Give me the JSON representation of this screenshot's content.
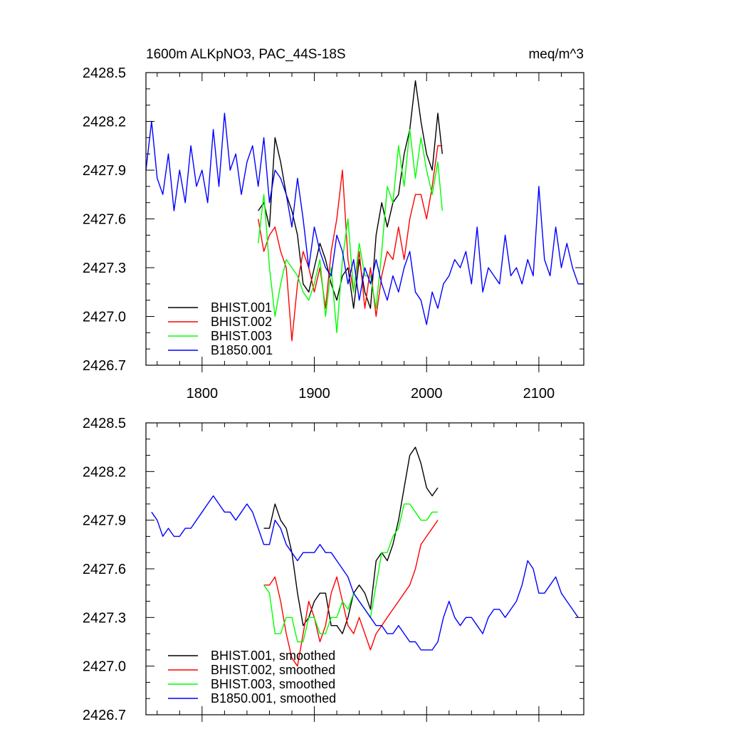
{
  "chart_data": [
    {
      "type": "line",
      "title": "1600m ALKpNO3, PAC_44S-18S",
      "units_label": "meq/m^3",
      "xlim": [
        1750,
        2140
      ],
      "ylim": [
        2426.7,
        2428.5
      ],
      "x_ticks": [
        1800,
        1900,
        2000,
        2100
      ],
      "x_tick_labels": [
        "1800",
        "1900",
        "2000",
        "2100"
      ],
      "y_ticks": [
        2426.7,
        2427.0,
        2427.3,
        2427.6,
        2427.9,
        2428.2,
        2428.5
      ],
      "y_tick_labels": [
        "2426.7",
        "2427.0",
        "2427.3",
        "2427.6",
        "2427.9",
        "2428.2",
        "2428.5"
      ],
      "legend_position": "bottom-left",
      "series": [
        {
          "name": "BHIST.001",
          "color": "#000000",
          "x": [
            1850,
            1855,
            1860,
            1865,
            1870,
            1875,
            1880,
            1885,
            1890,
            1895,
            1900,
            1905,
            1910,
            1915,
            1920,
            1925,
            1930,
            1935,
            1940,
            1945,
            1950,
            1955,
            1960,
            1965,
            1970,
            1975,
            1980,
            1985,
            1990,
            1995,
            2000,
            2005,
            2010,
            2014
          ],
          "y": [
            2427.65,
            2427.7,
            2427.55,
            2428.1,
            2427.95,
            2427.75,
            2427.65,
            2427.5,
            2427.2,
            2427.15,
            2427.3,
            2427.45,
            2427.35,
            2427.2,
            2427.1,
            2427.25,
            2427.3,
            2427.05,
            2427.35,
            2427.15,
            2427.05,
            2427.5,
            2427.7,
            2427.55,
            2427.7,
            2427.75,
            2428.0,
            2428.15,
            2428.45,
            2428.2,
            2428.0,
            2427.9,
            2428.25,
            2428.0
          ]
        },
        {
          "name": "BHIST.002",
          "color": "#ff0000",
          "x": [
            1850,
            1855,
            1860,
            1865,
            1870,
            1875,
            1880,
            1885,
            1890,
            1895,
            1900,
            1905,
            1910,
            1915,
            1920,
            1925,
            1930,
            1935,
            1940,
            1945,
            1950,
            1955,
            1960,
            1965,
            1970,
            1975,
            1980,
            1985,
            1990,
            1995,
            2000,
            2005,
            2010,
            2014
          ],
          "y": [
            2427.6,
            2427.4,
            2427.5,
            2427.55,
            2427.4,
            2427.3,
            2426.85,
            2427.2,
            2427.4,
            2427.3,
            2427.15,
            2427.3,
            2427.05,
            2427.4,
            2427.6,
            2427.9,
            2427.35,
            2427.15,
            2427.4,
            2427.05,
            2427.3,
            2427.0,
            2427.25,
            2427.4,
            2427.35,
            2427.55,
            2427.35,
            2427.6,
            2427.75,
            2427.75,
            2427.6,
            2427.8,
            2428.05,
            2428.05
          ]
        },
        {
          "name": "BHIST.003",
          "color": "#00ff00",
          "x": [
            1850,
            1855,
            1860,
            1865,
            1870,
            1875,
            1880,
            1885,
            1890,
            1895,
            1900,
            1905,
            1910,
            1915,
            1920,
            1925,
            1930,
            1935,
            1940,
            1945,
            1950,
            1955,
            1960,
            1965,
            1970,
            1975,
            1980,
            1985,
            1990,
            1995,
            2000,
            2005,
            2010,
            2014
          ],
          "y": [
            2427.45,
            2427.75,
            2427.3,
            2427.0,
            2427.2,
            2427.35,
            2427.3,
            2427.25,
            2427.15,
            2427.1,
            2427.2,
            2427.35,
            2427.0,
            2427.3,
            2426.9,
            2427.35,
            2427.6,
            2427.15,
            2427.45,
            2427.25,
            2427.25,
            2427.05,
            2427.4,
            2427.8,
            2427.7,
            2428.05,
            2427.8,
            2428.15,
            2427.85,
            2428.1,
            2427.9,
            2427.75,
            2427.95,
            2427.65
          ]
        },
        {
          "name": "B1850.001",
          "color": "#0000ff",
          "x": [
            1750,
            1755,
            1760,
            1765,
            1770,
            1775,
            1780,
            1785,
            1790,
            1795,
            1800,
            1805,
            1810,
            1815,
            1820,
            1825,
            1830,
            1835,
            1840,
            1845,
            1850,
            1855,
            1860,
            1865,
            1870,
            1875,
            1880,
            1885,
            1890,
            1895,
            1900,
            1905,
            1910,
            1915,
            1920,
            1925,
            1930,
            1935,
            1940,
            1945,
            1950,
            1955,
            1960,
            1965,
            1970,
            1975,
            1980,
            1985,
            1990,
            1995,
            2000,
            2005,
            2010,
            2015,
            2020,
            2025,
            2030,
            2035,
            2040,
            2045,
            2050,
            2055,
            2060,
            2065,
            2070,
            2075,
            2080,
            2085,
            2090,
            2095,
            2100,
            2105,
            2110,
            2115,
            2120,
            2125,
            2130,
            2135,
            2140
          ],
          "y": [
            2427.9,
            2428.2,
            2427.85,
            2427.75,
            2428.0,
            2427.65,
            2427.9,
            2427.7,
            2428.05,
            2427.8,
            2427.9,
            2427.7,
            2428.15,
            2427.8,
            2428.25,
            2427.9,
            2428.0,
            2427.75,
            2427.95,
            2428.05,
            2427.8,
            2428.1,
            2427.7,
            2427.9,
            2427.85,
            2427.75,
            2427.55,
            2427.85,
            2427.6,
            2427.3,
            2427.55,
            2427.4,
            2427.3,
            2427.25,
            2427.5,
            2427.4,
            2427.2,
            2427.35,
            2427.1,
            2427.3,
            2427.2,
            2427.35,
            2427.2,
            2427.1,
            2427.25,
            2427.15,
            2427.3,
            2427.4,
            2427.15,
            2427.1,
            2426.95,
            2427.15,
            2427.05,
            2427.2,
            2427.25,
            2427.35,
            2427.3,
            2427.4,
            2427.2,
            2427.55,
            2427.15,
            2427.3,
            2427.25,
            2427.2,
            2427.5,
            2427.25,
            2427.3,
            2427.2,
            2427.35,
            2427.25,
            2427.8,
            2427.35,
            2427.25,
            2427.55,
            2427.3,
            2427.45,
            2427.3,
            2427.2,
            2427.2
          ]
        }
      ]
    },
    {
      "type": "line",
      "xlim": [
        1750,
        2140
      ],
      "ylim": [
        2426.7,
        2428.5
      ],
      "x_ticks": [
        1800,
        1900,
        2000,
        2100
      ],
      "y_ticks": [
        2426.7,
        2427.0,
        2427.3,
        2427.6,
        2427.9,
        2428.2,
        2428.5
      ],
      "y_tick_labels": [
        "2426.7",
        "2427.0",
        "2427.3",
        "2427.6",
        "2427.9",
        "2428.2",
        "2428.5"
      ],
      "legend_position": "bottom-left",
      "series": [
        {
          "name": "BHIST.001, smoothed",
          "color": "#000000",
          "x": [
            1855,
            1860,
            1865,
            1870,
            1875,
            1880,
            1885,
            1890,
            1895,
            1900,
            1905,
            1910,
            1915,
            1920,
            1925,
            1930,
            1935,
            1940,
            1945,
            1950,
            1955,
            1960,
            1965,
            1970,
            1975,
            1980,
            1985,
            1990,
            1995,
            2000,
            2005,
            2010
          ],
          "y": [
            2427.85,
            2427.85,
            2428.0,
            2427.9,
            2427.85,
            2427.7,
            2427.45,
            2427.25,
            2427.3,
            2427.4,
            2427.45,
            2427.45,
            2427.25,
            2427.25,
            2427.2,
            2427.3,
            2427.45,
            2427.5,
            2427.45,
            2427.35,
            2427.65,
            2427.7,
            2427.65,
            2427.75,
            2427.9,
            2428.1,
            2428.3,
            2428.35,
            2428.25,
            2428.1,
            2428.05,
            2428.1
          ]
        },
        {
          "name": "BHIST.002, smoothed",
          "color": "#ff0000",
          "x": [
            1855,
            1860,
            1865,
            1870,
            1875,
            1880,
            1885,
            1890,
            1895,
            1900,
            1905,
            1910,
            1915,
            1920,
            1925,
            1930,
            1935,
            1940,
            1945,
            1950,
            1955,
            1960,
            1965,
            1970,
            1975,
            1980,
            1985,
            1990,
            1995,
            2000,
            2005,
            2010
          ],
          "y": [
            2427.5,
            2427.5,
            2427.55,
            2427.4,
            2427.2,
            2427.05,
            2427.0,
            2427.2,
            2427.4,
            2427.3,
            2427.15,
            2427.25,
            2427.45,
            2427.55,
            2427.4,
            2427.25,
            2427.2,
            2427.3,
            2427.2,
            2427.1,
            2427.2,
            2427.25,
            2427.3,
            2427.35,
            2427.4,
            2427.45,
            2427.5,
            2427.6,
            2427.75,
            2427.8,
            2427.85,
            2427.9
          ]
        },
        {
          "name": "BHIST.003, smoothed",
          "color": "#00ff00",
          "x": [
            1855,
            1860,
            1865,
            1870,
            1875,
            1880,
            1885,
            1890,
            1895,
            1900,
            1905,
            1910,
            1915,
            1920,
            1925,
            1930,
            1935,
            1940,
            1945,
            1950,
            1955,
            1960,
            1965,
            1970,
            1975,
            1980,
            1985,
            1990,
            1995,
            2000,
            2005,
            2010
          ],
          "y": [
            2427.5,
            2427.45,
            2427.2,
            2427.2,
            2427.3,
            2427.3,
            2427.15,
            2427.15,
            2427.3,
            2427.3,
            2427.2,
            2427.2,
            2427.3,
            2427.3,
            2427.4,
            2427.35,
            2427.45,
            2427.4,
            2427.35,
            2427.3,
            2427.5,
            2427.7,
            2427.7,
            2427.8,
            2427.85,
            2428.0,
            2428.0,
            2427.95,
            2427.9,
            2427.9,
            2427.95,
            2427.95
          ]
        },
        {
          "name": "B1850.001, smoothed",
          "color": "#0000ff",
          "x": [
            1755,
            1760,
            1765,
            1770,
            1775,
            1780,
            1785,
            1790,
            1795,
            1800,
            1805,
            1810,
            1815,
            1820,
            1825,
            1830,
            1835,
            1840,
            1845,
            1850,
            1855,
            1860,
            1865,
            1870,
            1875,
            1880,
            1885,
            1890,
            1895,
            1900,
            1905,
            1910,
            1915,
            1920,
            1925,
            1930,
            1935,
            1940,
            1945,
            1950,
            1955,
            1960,
            1965,
            1970,
            1975,
            1980,
            1985,
            1990,
            1995,
            2000,
            2005,
            2010,
            2015,
            2020,
            2025,
            2030,
            2035,
            2040,
            2045,
            2050,
            2055,
            2060,
            2065,
            2070,
            2075,
            2080,
            2085,
            2090,
            2095,
            2100,
            2105,
            2110,
            2115,
            2120,
            2125,
            2130,
            2135
          ],
          "y": [
            2427.95,
            2427.9,
            2427.8,
            2427.85,
            2427.8,
            2427.8,
            2427.85,
            2427.85,
            2427.9,
            2427.95,
            2428.0,
            2428.05,
            2428.0,
            2427.95,
            2427.95,
            2427.9,
            2427.95,
            2428.0,
            2427.95,
            2427.85,
            2427.75,
            2427.75,
            2427.9,
            2427.85,
            2427.75,
            2427.7,
            2427.65,
            2427.7,
            2427.7,
            2427.7,
            2427.75,
            2427.7,
            2427.7,
            2427.65,
            2427.6,
            2427.55,
            2427.45,
            2427.4,
            2427.35,
            2427.3,
            2427.25,
            2427.25,
            2427.2,
            2427.2,
            2427.25,
            2427.2,
            2427.15,
            2427.15,
            2427.1,
            2427.1,
            2427.1,
            2427.15,
            2427.3,
            2427.4,
            2427.3,
            2427.25,
            2427.3,
            2427.3,
            2427.25,
            2427.2,
            2427.3,
            2427.35,
            2427.35,
            2427.3,
            2427.35,
            2427.4,
            2427.5,
            2427.65,
            2427.6,
            2427.45,
            2427.45,
            2427.5,
            2427.55,
            2427.45,
            2427.4,
            2427.35,
            2427.3
          ]
        }
      ]
    }
  ]
}
